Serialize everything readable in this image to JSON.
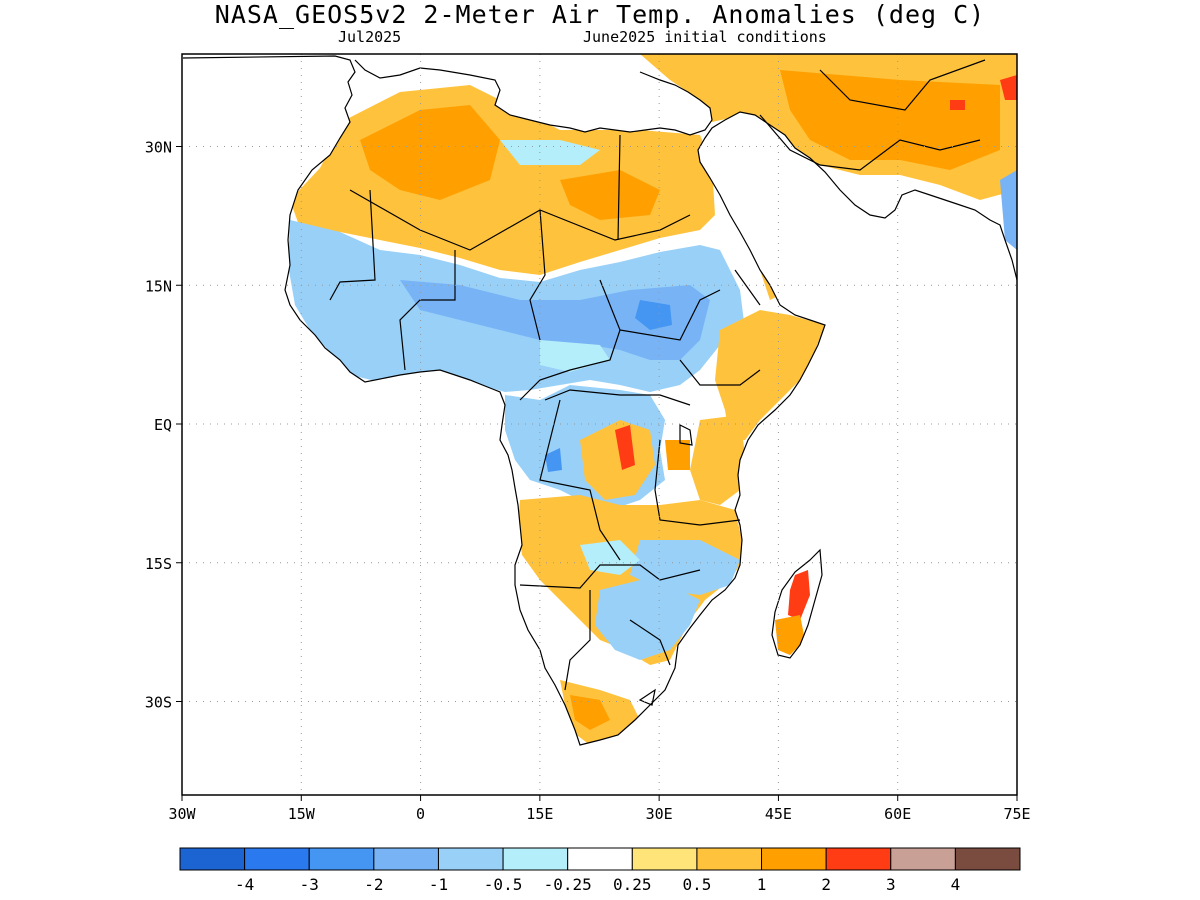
{
  "title": "NASA_GEOS5v2 2-Meter Air Temp. Anomalies (deg C)",
  "subtitle_left": "Jul2025",
  "subtitle_right": "June2025 initial conditions",
  "lat_ticks": [
    {
      "lat": 30,
      "label": "30N"
    },
    {
      "lat": 15,
      "label": "15N"
    },
    {
      "lat": 0,
      "label": "EQ"
    },
    {
      "lat": -15,
      "label": "15S"
    },
    {
      "lat": -30,
      "label": "30S"
    }
  ],
  "lon_ticks": [
    {
      "lon": -30,
      "label": "30W"
    },
    {
      "lon": -15,
      "label": "15W"
    },
    {
      "lon": 0,
      "label": "0"
    },
    {
      "lon": 15,
      "label": "15E"
    },
    {
      "lon": 30,
      "label": "30E"
    },
    {
      "lon": 45,
      "label": "45E"
    },
    {
      "lon": 60,
      "label": "60E"
    },
    {
      "lon": 75,
      "label": "75E"
    }
  ],
  "colorbar": {
    "colors": [
      "#1c64d2",
      "#2b79ee",
      "#4496f2",
      "#78b4f5",
      "#98d0f8",
      "#b4eefa",
      "#ffffff",
      "#ffe47a",
      "#ffc23c",
      "#ffa000",
      "#ff3c14",
      "#c8a096",
      "#7a4c40"
    ],
    "labels": [
      "-4",
      "-3",
      "-2",
      "-1",
      "-0.5",
      "-0.25",
      "0.25",
      "0.5",
      "1",
      "2",
      "3",
      "4"
    ]
  }
}
